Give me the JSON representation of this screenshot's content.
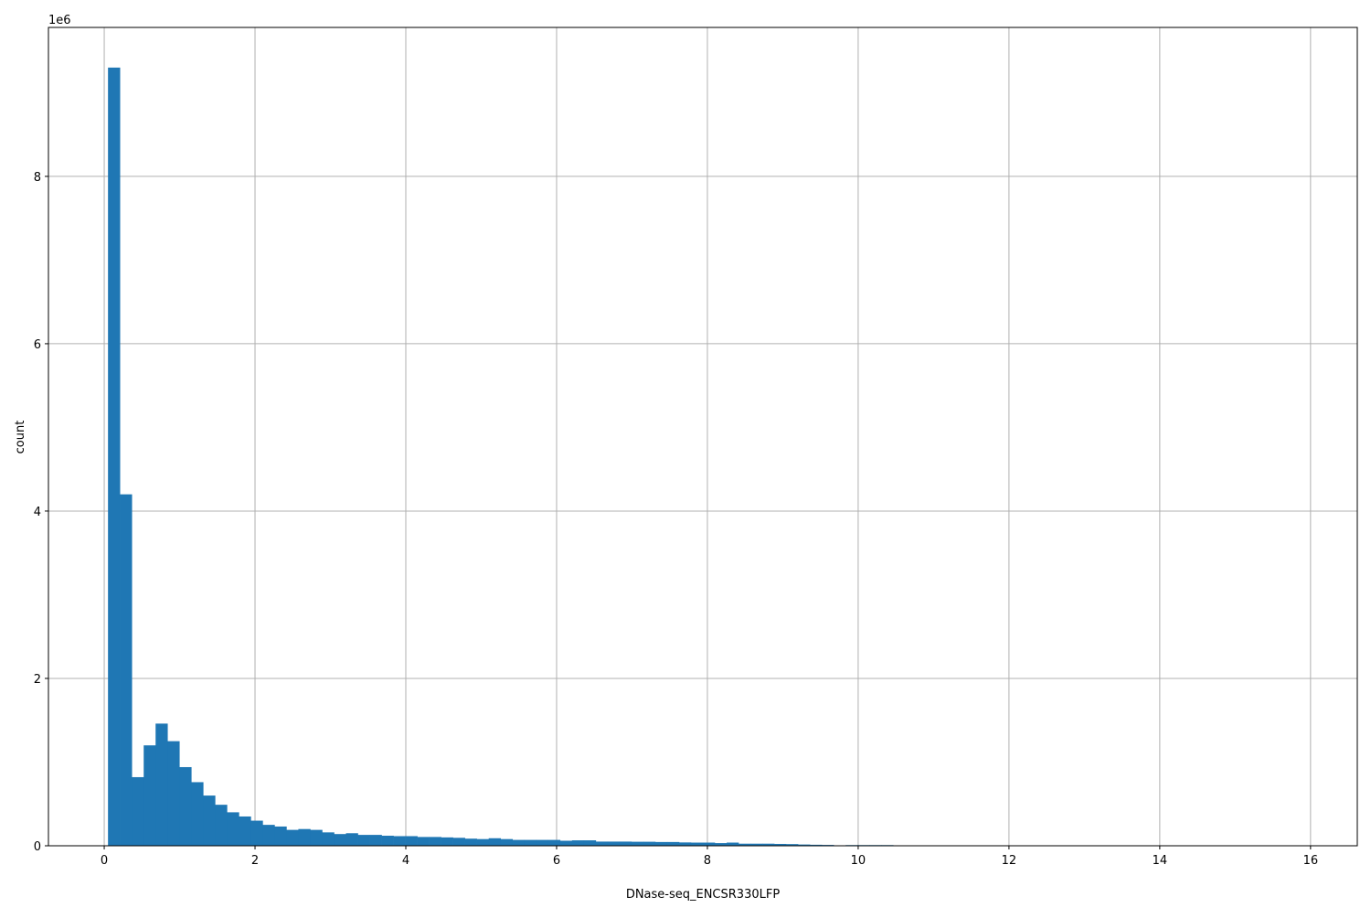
{
  "chart_data": {
    "type": "bar",
    "title": "",
    "xlabel": "DNase-seq_ENCSR330LFP",
    "ylabel": "count",
    "y_offset_label": "1e6",
    "xlim": [
      -0.74,
      16.62
    ],
    "ylim": [
      0,
      9780000
    ],
    "grid": true,
    "color": "#1f77b4",
    "bin_start": 0.05,
    "bin_width": 0.1578,
    "x_ticks": [
      0,
      2,
      4,
      6,
      8,
      10,
      12,
      14,
      16
    ],
    "y_ticks": [
      0,
      2,
      4,
      6,
      8
    ],
    "values": [
      9300000,
      4200000,
      820000,
      1200000,
      1460000,
      1250000,
      940000,
      760000,
      600000,
      490000,
      400000,
      350000,
      300000,
      250000,
      230000,
      190000,
      200000,
      190000,
      160000,
      140000,
      150000,
      130000,
      130000,
      120000,
      115000,
      115000,
      105000,
      105000,
      100000,
      95000,
      85000,
      80000,
      90000,
      80000,
      70000,
      70000,
      70000,
      70000,
      60000,
      65000,
      65000,
      50000,
      50000,
      50000,
      48000,
      48000,
      45000,
      45000,
      40000,
      38000,
      38000,
      32000,
      38000,
      25000,
      25000,
      25000,
      22000,
      20000,
      15000,
      12000,
      10000,
      5000,
      8000,
      8000,
      8000,
      8000,
      3000,
      2000,
      1500,
      1000,
      800,
      600,
      500,
      400,
      300,
      200,
      200,
      150,
      100,
      100,
      80,
      60,
      50,
      40,
      30,
      20,
      20,
      10,
      10,
      10,
      5,
      5,
      5,
      3,
      3,
      2,
      2,
      1,
      1,
      1
    ]
  }
}
